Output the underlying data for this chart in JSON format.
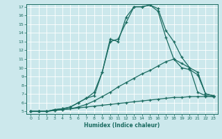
{
  "xlabel": "Humidex (Indice chaleur)",
  "bg_color": "#cce8ec",
  "line_color": "#1a6b60",
  "xlim": [
    -0.5,
    23.5
  ],
  "ylim": [
    4.7,
    17.3
  ],
  "xticks": [
    0,
    1,
    2,
    3,
    4,
    5,
    6,
    7,
    8,
    9,
    10,
    11,
    12,
    13,
    14,
    15,
    16,
    17,
    18,
    19,
    20,
    21,
    22,
    23
  ],
  "yticks": [
    5,
    6,
    7,
    8,
    9,
    10,
    11,
    12,
    13,
    14,
    15,
    16,
    17
  ],
  "line1_x": [
    0,
    1,
    2,
    3,
    4,
    5,
    6,
    7,
    8,
    9,
    10,
    11,
    12,
    13,
    14,
    15,
    16,
    17,
    18,
    19,
    20,
    21,
    22,
    23
  ],
  "line1_y": [
    5.0,
    5.0,
    5.0,
    5.1,
    5.2,
    5.3,
    5.4,
    5.5,
    5.6,
    5.7,
    5.8,
    5.9,
    6.0,
    6.1,
    6.2,
    6.3,
    6.4,
    6.5,
    6.6,
    6.6,
    6.7,
    6.7,
    6.7,
    6.7
  ],
  "line2_x": [
    0,
    1,
    2,
    3,
    4,
    5,
    6,
    7,
    8,
    9,
    10,
    11,
    12,
    13,
    14,
    15,
    16,
    17,
    18,
    19,
    20,
    21,
    22,
    23
  ],
  "line2_y": [
    5.0,
    5.0,
    5.0,
    5.1,
    5.2,
    5.3,
    5.5,
    5.8,
    6.2,
    6.7,
    7.2,
    7.8,
    8.3,
    8.8,
    9.3,
    9.7,
    10.2,
    10.7,
    11.0,
    10.5,
    10.0,
    7.2,
    6.8,
    6.7
  ],
  "line3_x": [
    0,
    1,
    2,
    3,
    4,
    5,
    6,
    7,
    8,
    9,
    10,
    11,
    12,
    13,
    14,
    15,
    16,
    17,
    18,
    19,
    20,
    21,
    22,
    23
  ],
  "line3_y": [
    5.0,
    5.0,
    5.0,
    5.2,
    5.3,
    5.5,
    6.0,
    6.5,
    7.2,
    9.5,
    13.0,
    13.3,
    15.2,
    17.0,
    17.0,
    17.2,
    16.8,
    14.3,
    13.0,
    11.2,
    10.0,
    9.5,
    7.0,
    6.8
  ],
  "line4_x": [
    0,
    1,
    2,
    3,
    4,
    5,
    6,
    7,
    8,
    9,
    10,
    11,
    12,
    13,
    14,
    15,
    16,
    17,
    18,
    19,
    20,
    21,
    22,
    23
  ],
  "line4_y": [
    5.0,
    5.0,
    5.0,
    5.2,
    5.3,
    5.5,
    6.0,
    6.5,
    6.8,
    9.5,
    13.3,
    13.0,
    15.8,
    17.0,
    17.0,
    17.2,
    16.5,
    13.5,
    11.0,
    10.0,
    9.8,
    9.2,
    7.0,
    6.8
  ]
}
